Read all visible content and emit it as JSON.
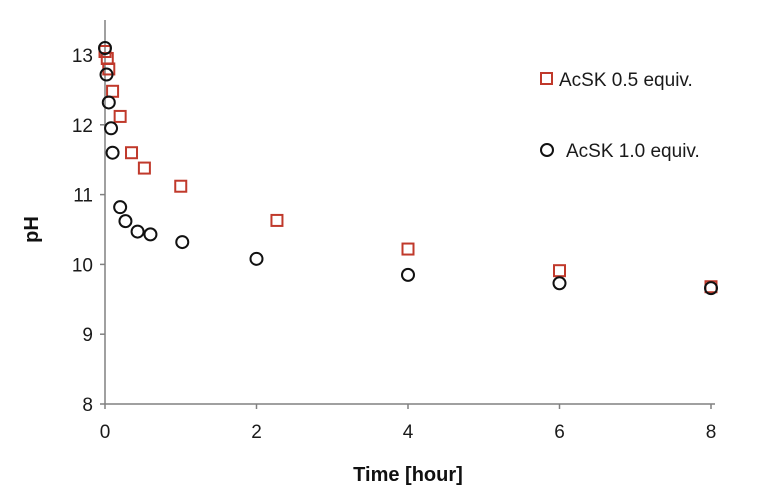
{
  "chart_data": {
    "type": "scatter",
    "title": "",
    "xlabel": "Time [hour]",
    "ylabel": "pH",
    "xlim": [
      0,
      8
    ],
    "ylim": [
      8,
      13
    ],
    "xticks": [
      0,
      2,
      4,
      6,
      8
    ],
    "yticks": [
      8,
      9,
      10,
      11,
      12,
      13
    ],
    "grid": false,
    "legend_position": "top-right",
    "series": [
      {
        "name": "AcSK 0.5 equiv.",
        "marker": "square",
        "color": "#c0392b",
        "points": [
          {
            "x": 0.0,
            "y": 13.05
          },
          {
            "x": 0.03,
            "y": 12.95
          },
          {
            "x": 0.05,
            "y": 12.8
          },
          {
            "x": 0.1,
            "y": 12.48
          },
          {
            "x": 0.2,
            "y": 12.12
          },
          {
            "x": 0.35,
            "y": 11.6
          },
          {
            "x": 0.52,
            "y": 11.38
          },
          {
            "x": 1.0,
            "y": 11.12
          },
          {
            "x": 2.27,
            "y": 10.63
          },
          {
            "x": 4.0,
            "y": 10.22
          },
          {
            "x": 6.0,
            "y": 9.91
          },
          {
            "x": 8.0,
            "y": 9.68
          }
        ]
      },
      {
        "name": "AcSK 1.0 equiv.",
        "marker": "circle",
        "color": "#111111",
        "points": [
          {
            "x": 0.0,
            "y": 13.1
          },
          {
            "x": 0.02,
            "y": 12.72
          },
          {
            "x": 0.05,
            "y": 12.32
          },
          {
            "x": 0.08,
            "y": 11.95
          },
          {
            "x": 0.1,
            "y": 11.6
          },
          {
            "x": 0.2,
            "y": 10.82
          },
          {
            "x": 0.27,
            "y": 10.62
          },
          {
            "x": 0.43,
            "y": 10.47
          },
          {
            "x": 0.6,
            "y": 10.43
          },
          {
            "x": 1.02,
            "y": 10.32
          },
          {
            "x": 2.0,
            "y": 10.08
          },
          {
            "x": 4.0,
            "y": 9.85
          },
          {
            "x": 6.0,
            "y": 9.73
          },
          {
            "x": 8.0,
            "y": 9.66
          }
        ]
      }
    ]
  }
}
